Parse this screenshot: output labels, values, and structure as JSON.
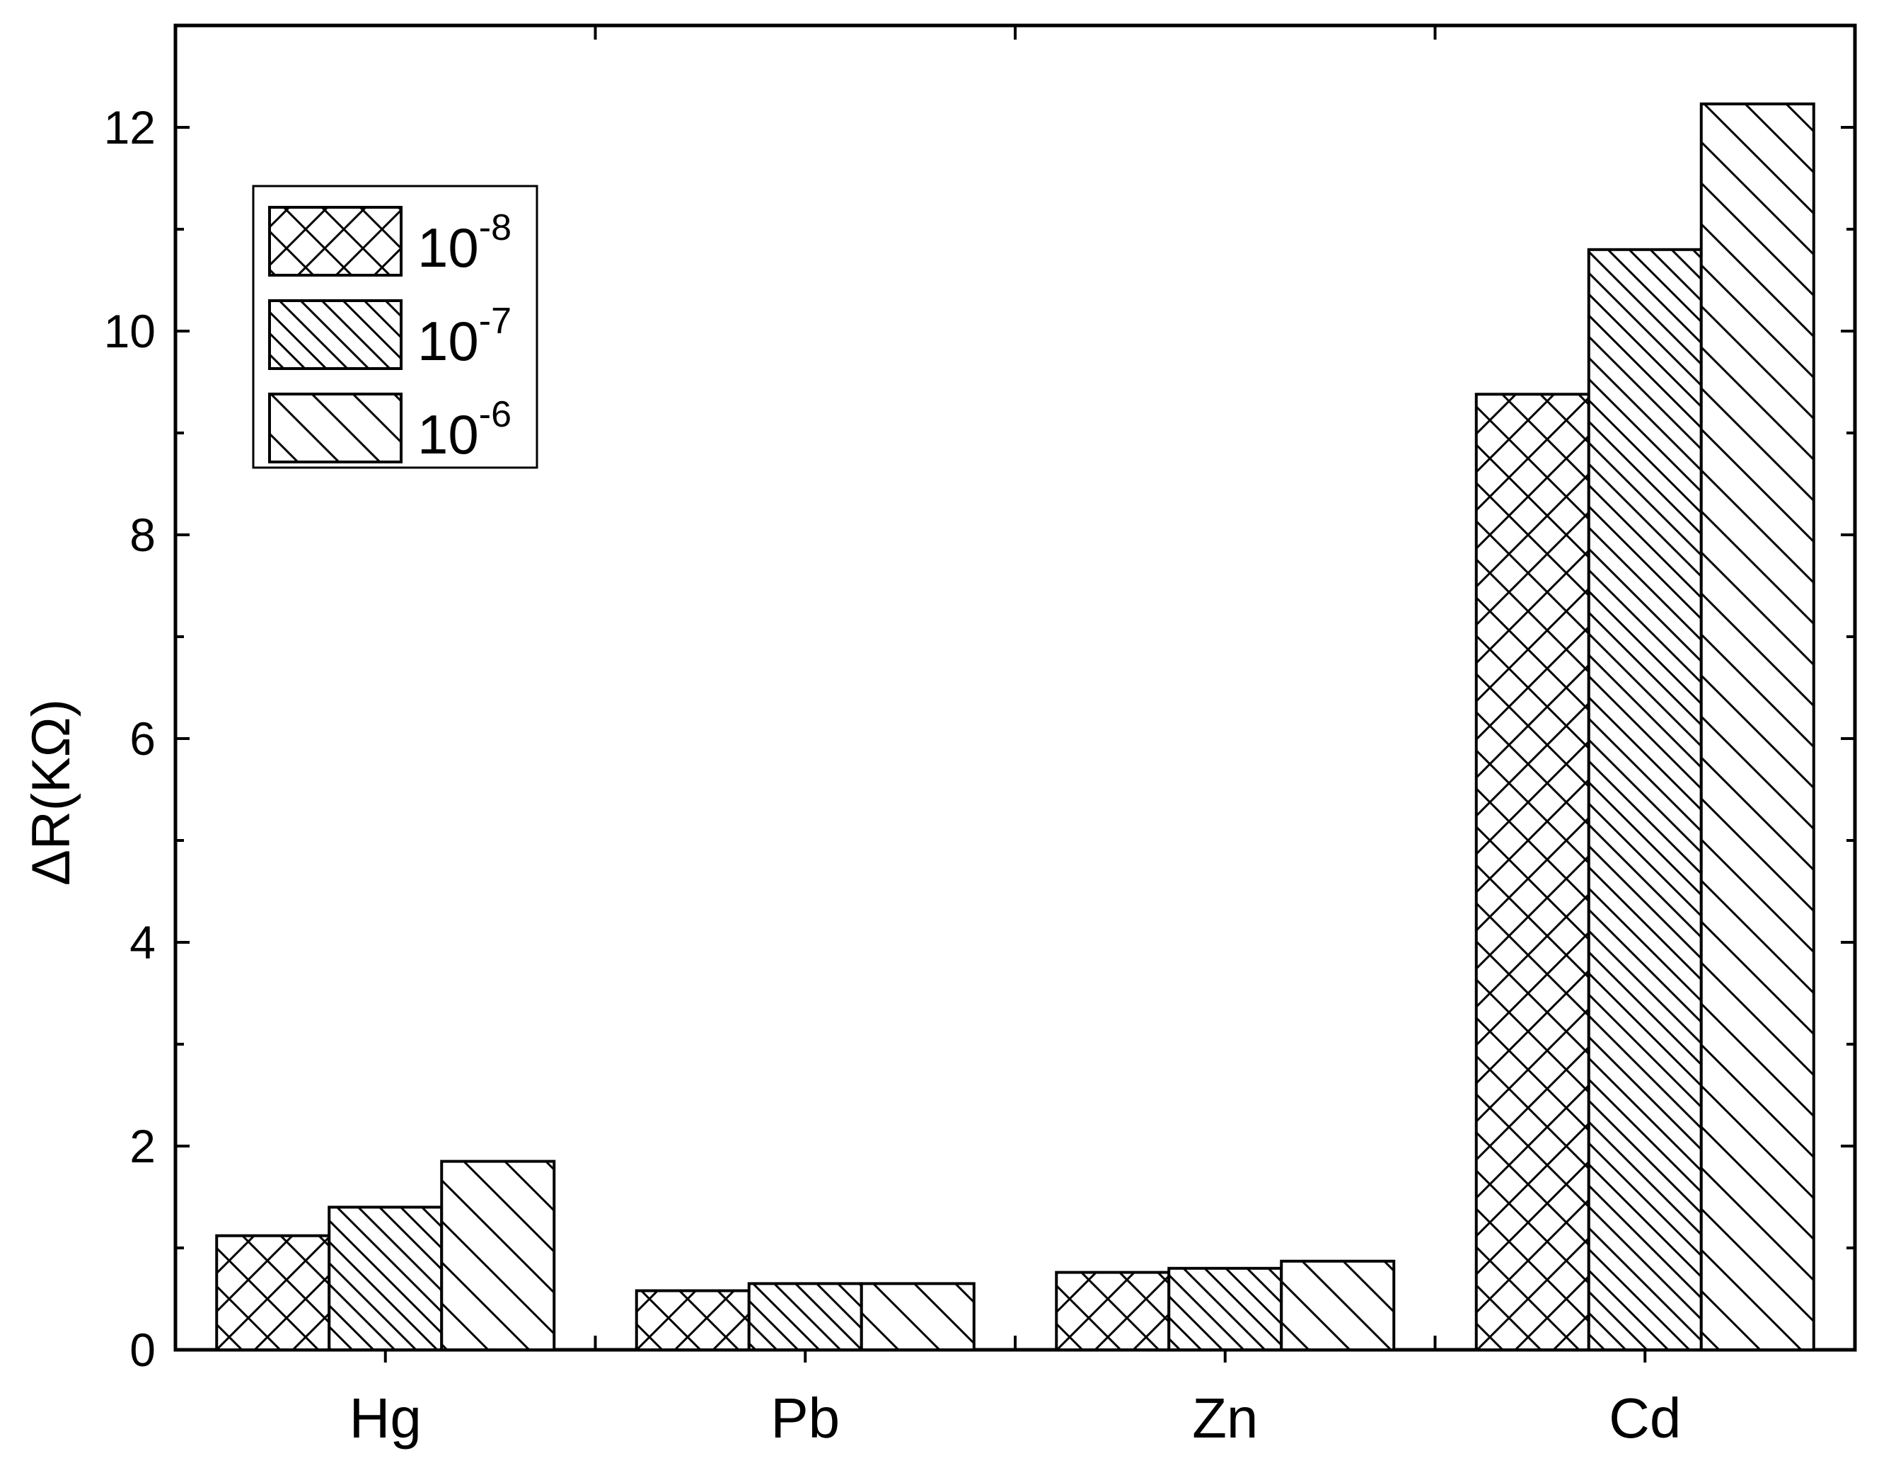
{
  "chart_data": {
    "type": "bar",
    "categories": [
      "Hg",
      "Pb",
      "Zn",
      "Cd"
    ],
    "series": [
      {
        "name": "10-8",
        "values": [
          1.12,
          0.58,
          0.76,
          9.38
        ]
      },
      {
        "name": "10-7",
        "values": [
          1.4,
          0.65,
          0.8,
          10.8
        ]
      },
      {
        "name": "10-6",
        "values": [
          1.85,
          0.65,
          0.87,
          12.23
        ]
      }
    ],
    "legend": [
      {
        "base": "10",
        "exp": "-8",
        "pattern": "crosshatch"
      },
      {
        "base": "10",
        "exp": "-7",
        "pattern": "dense-diagonal"
      },
      {
        "base": "10",
        "exp": "-6",
        "pattern": "sparse-diagonal"
      }
    ],
    "title": "",
    "xlabel": "",
    "ylabel": "ΔR(KΩ)",
    "ylim": [
      0,
      13
    ],
    "yticks": [
      "0",
      "2",
      "4",
      "6",
      "8",
      "10",
      "12"
    ],
    "grid": false,
    "legend_position": "top-left",
    "colors": {
      "bar_fill": "#ffffff",
      "stroke": "#000000"
    }
  }
}
